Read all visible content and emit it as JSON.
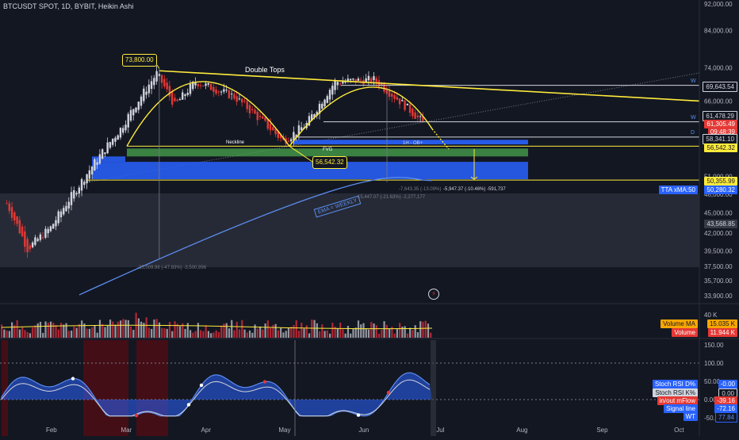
{
  "header": {
    "title": "BTCUSDT SPOT, 1D, BYBIT, Heikin Ashi"
  },
  "colors": {
    "bg": "#131722",
    "up": "#d1d4dc",
    "down": "#e53935",
    "yellow": "#ffeb3b",
    "blue": "#2962ff",
    "green": "#4caf50",
    "ema": "#5b8def"
  },
  "price_axis": {
    "ticks": [
      "92,000.00",
      "84,000.00",
      "74,000.00",
      "66,000.00",
      "51,000.00",
      "48,000.00",
      "45,000.00",
      "42,000.00",
      "39,500.00",
      "37,500.00",
      "35,700.00",
      "33,900.00"
    ]
  },
  "time_axis": {
    "ticks": [
      "Feb",
      "Mar",
      "Apr",
      "May",
      "Jun",
      "Jul",
      "Aug",
      "Sep",
      "Oct"
    ]
  },
  "annotations": {
    "top_label": "73,800.00",
    "pattern_label": "Double Tops",
    "neckline_label": "Neckline",
    "fvg_label": "FVG",
    "neck_price": "56,542.32",
    "ob_label": "1H - OB+",
    "ema_label": "EMA = WEEKLY",
    "measure_1": "-35,009.96 (-47.83%) -3,500,996",
    "measure_2": "-15,447.07 (-21.63%) -2,277,177",
    "measure_3": "-7,643.35 (-13.09%)",
    "measure_4": "-5,947.37 (-10.46%) -591,737",
    "w1": "W",
    "w2": "W",
    "d1": "D"
  },
  "price_tags": [
    {
      "label": "69,643.54",
      "kind": "white"
    },
    {
      "label": "61,478.29",
      "kind": "white"
    },
    {
      "label": "61,305.49",
      "kind": "red"
    },
    {
      "label": "09:48:39",
      "kind": "red"
    },
    {
      "label": "58,341.10",
      "kind": "white"
    },
    {
      "label": "56,542.32",
      "kind": "yellow"
    },
    {
      "label": "50,355.99",
      "kind": "yellow"
    },
    {
      "label": "50,280.32",
      "kind": "blue"
    },
    {
      "label": "43,568.85",
      "kind": "gray"
    }
  ],
  "indicator_tags": {
    "tta_label": "TTA xMA:50"
  },
  "volume": {
    "axis_label": "40 K",
    "ma_label": "Volume MA",
    "ma_value": "15.035 K",
    "vol_label": "Volume",
    "vol_value": "11.944 K"
  },
  "osc": {
    "ticks": [
      "150.00",
      "100.00",
      "50.00",
      "0.00",
      "-50.00"
    ],
    "legend": [
      {
        "label": "Stoch RSI D%",
        "value": "-0.00",
        "color": "#2962ff"
      },
      {
        "label": "Stoch RSI K%",
        "value": "0.00",
        "color": "#d1d4dc"
      },
      {
        "label": "in/out mFlow",
        "value": "-39.16",
        "color": "#e53935"
      },
      {
        "label": "Signal line",
        "value": "-72.16",
        "color": "#2962ff"
      },
      {
        "label": "WT",
        "value": "77.84",
        "color": "#2962ff"
      }
    ]
  },
  "chart_data": {
    "type": "candlestick",
    "title": "BTCUSDT SPOT, 1D, BYBIT, Heikin Ashi",
    "ylim": [
      33900,
      92000
    ],
    "yscale": "log",
    "x_start": "2024-01-13",
    "x_ticks": [
      "Feb",
      "Mar",
      "Apr",
      "May",
      "Jun",
      "Jul",
      "Aug",
      "Sep",
      "Oct"
    ],
    "approx_close_path": [
      {
        "date": "2024-01-15",
        "close": 46500
      },
      {
        "date": "2024-01-23",
        "close": 39800
      },
      {
        "date": "2024-02-01",
        "close": 42800
      },
      {
        "date": "2024-02-12",
        "close": 49500
      },
      {
        "date": "2024-02-28",
        "close": 60000
      },
      {
        "date": "2024-03-13",
        "close": 72500
      },
      {
        "date": "2024-03-20",
        "close": 65000
      },
      {
        "date": "2024-03-28",
        "close": 70500
      },
      {
        "date": "2024-04-12",
        "close": 67000
      },
      {
        "date": "2024-04-19",
        "close": 63500
      },
      {
        "date": "2024-05-01",
        "close": 57500
      },
      {
        "date": "2024-05-10",
        "close": 61000
      },
      {
        "date": "2024-05-21",
        "close": 70500
      },
      {
        "date": "2024-06-05",
        "close": 71000
      },
      {
        "date": "2024-06-15",
        "close": 66000
      },
      {
        "date": "2024-06-24",
        "close": 61300
      }
    ],
    "levels": [
      69643.54,
      61478.29,
      61305.49,
      58341.1,
      56542.32,
      50355.99,
      50280.32,
      43568.85
    ],
    "patterns": [
      "Double Tops",
      "Neckline",
      "FVG"
    ]
  }
}
